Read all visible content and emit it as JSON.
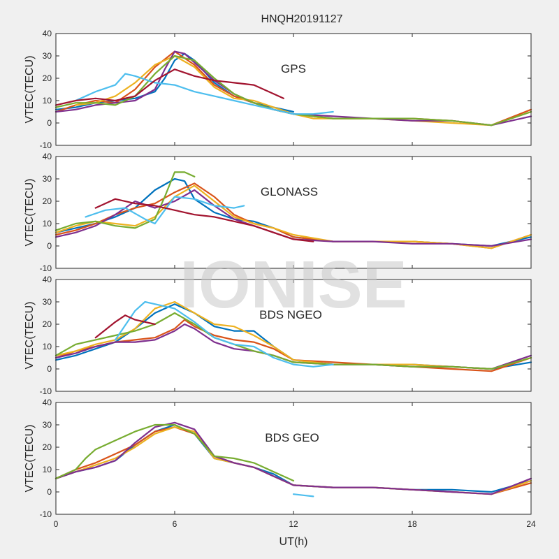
{
  "title": "HNQH20191127",
  "watermark": "IONISE",
  "colors": [
    "#0072BD",
    "#D95319",
    "#EDB120",
    "#7E2F8E",
    "#77AC30",
    "#4DBEEE",
    "#A2142F"
  ],
  "chart_data": [
    {
      "type": "line",
      "label": "GPS",
      "ylabel": "VTEC(TECU)",
      "xlim": [
        0,
        24
      ],
      "ylim": [
        -10,
        40
      ],
      "xticks": [
        0,
        6,
        12,
        18,
        24
      ],
      "yticks": [
        -10,
        0,
        10,
        20,
        30,
        40
      ],
      "series": [
        {
          "x": [
            0,
            1,
            2,
            3,
            4,
            5,
            5.5,
            6,
            6.5,
            7,
            8,
            9,
            10,
            11,
            12
          ],
          "y": [
            6,
            7,
            9,
            10,
            11,
            14,
            20,
            28,
            31,
            28,
            18,
            12,
            9,
            7,
            5
          ]
        },
        {
          "x": [
            0,
            1,
            2,
            3,
            4,
            5,
            6,
            7,
            8,
            9,
            10,
            11,
            12,
            14,
            16,
            18,
            20,
            22,
            24
          ],
          "y": [
            5,
            8,
            10,
            9,
            15,
            25,
            32,
            26,
            17,
            12,
            9,
            6,
            4,
            2,
            2,
            2,
            1,
            -1,
            6
          ]
        },
        {
          "x": [
            1,
            2,
            3,
            4,
            5,
            6,
            7,
            8,
            9,
            10,
            11,
            12,
            13,
            14,
            16,
            18,
            20,
            22,
            24
          ],
          "y": [
            8,
            9,
            12,
            18,
            26,
            30,
            25,
            16,
            11,
            10,
            7,
            4,
            2,
            2,
            2,
            1,
            0,
            -1,
            5
          ]
        },
        {
          "x": [
            0,
            1,
            2,
            3,
            4,
            5,
            5.5,
            6,
            6.5,
            7,
            8,
            9,
            10,
            11,
            12,
            14,
            16,
            18,
            20,
            22,
            24
          ],
          "y": [
            5,
            6,
            8,
            9,
            10,
            15,
            24,
            32,
            31,
            27,
            19,
            13,
            9,
            6,
            4,
            3,
            2,
            1,
            1,
            -1,
            3
          ]
        },
        {
          "x": [
            0,
            1,
            2,
            3,
            4,
            5,
            6,
            7,
            8,
            9,
            10,
            11,
            12,
            14,
            16,
            18,
            20,
            22,
            24
          ],
          "y": [
            7,
            9,
            9,
            8,
            12,
            22,
            30,
            28,
            20,
            13,
            9,
            6,
            4,
            2,
            2,
            2,
            1,
            -1,
            5
          ]
        },
        {
          "x": [
            1,
            2,
            3,
            3.5,
            4,
            5,
            6,
            7,
            8,
            9,
            10,
            11,
            12,
            13,
            14
          ],
          "y": [
            10,
            14,
            17,
            22,
            21,
            18,
            17,
            14,
            12,
            10,
            8,
            6,
            4,
            4,
            5
          ]
        },
        {
          "x": [
            0,
            1,
            2,
            3,
            4,
            5,
            6,
            7,
            8,
            9,
            10,
            10.5,
            11,
            11.5
          ],
          "y": [
            8,
            10,
            11,
            10,
            12,
            19,
            24,
            21,
            19,
            18,
            17,
            15,
            13,
            11
          ]
        }
      ]
    },
    {
      "type": "line",
      "label": "GLONASS",
      "ylabel": "VTEC(TECU)",
      "xlim": [
        0,
        24
      ],
      "ylim": [
        -10,
        40
      ],
      "xticks": [
        0,
        6,
        12,
        18,
        24
      ],
      "yticks": [
        -10,
        0,
        10,
        20,
        30,
        40
      ],
      "series": [
        {
          "x": [
            0,
            1,
            2,
            3,
            4,
            5,
            6,
            6.5,
            7,
            8,
            9,
            10,
            11,
            12,
            14,
            16,
            18,
            20,
            22,
            24
          ],
          "y": [
            6,
            8,
            10,
            13,
            17,
            25,
            30,
            29,
            21,
            15,
            12,
            11,
            8,
            4,
            2,
            2,
            2,
            1,
            0,
            4
          ]
        },
        {
          "x": [
            0,
            1,
            2,
            3,
            4,
            5,
            6,
            7,
            8,
            9,
            10,
            11,
            12,
            14,
            16,
            18,
            20,
            22,
            24
          ],
          "y": [
            5,
            7,
            10,
            14,
            17,
            19,
            24,
            28,
            22,
            14,
            10,
            8,
            4,
            2,
            2,
            2,
            1,
            -1,
            5
          ]
        },
        {
          "x": [
            0,
            1,
            2,
            3,
            4,
            5,
            6,
            7,
            8,
            9,
            10,
            11,
            12,
            14,
            16,
            18,
            20,
            22,
            24
          ],
          "y": [
            6,
            9,
            11,
            10,
            9,
            13,
            22,
            27,
            20,
            13,
            10,
            8,
            5,
            2,
            2,
            2,
            1,
            -1,
            5
          ]
        },
        {
          "x": [
            0,
            1,
            2,
            3,
            4,
            5,
            6,
            7,
            8,
            9,
            10,
            11,
            12,
            14,
            16,
            18,
            20,
            22,
            24
          ],
          "y": [
            4,
            6,
            9,
            14,
            20,
            17,
            20,
            25,
            18,
            12,
            9,
            6,
            3,
            2,
            2,
            1,
            1,
            0,
            3
          ]
        },
        {
          "x": [
            0,
            1,
            2,
            3,
            4,
            5,
            5.5,
            6,
            6.5,
            7
          ],
          "y": [
            7,
            10,
            11,
            9,
            8,
            12,
            22,
            33,
            33,
            31
          ]
        },
        {
          "x": [
            1.5,
            2.5,
            3.5,
            4.5,
            5,
            5.5,
            6,
            7,
            8,
            9,
            9.5
          ],
          "y": [
            13,
            16,
            17,
            12,
            10,
            16,
            22,
            21,
            18,
            17,
            18
          ]
        },
        {
          "x": [
            2,
            3,
            4,
            5,
            6,
            7,
            8,
            9,
            10,
            11,
            12,
            13
          ],
          "y": [
            17,
            21,
            19,
            18,
            16,
            14,
            13,
            11,
            9,
            6,
            3,
            2
          ]
        }
      ]
    },
    {
      "type": "line",
      "label": "BDS NGEO",
      "ylabel": "VTEC(TECU)",
      "xlim": [
        0,
        24
      ],
      "ylim": [
        -10,
        40
      ],
      "xticks": [
        0,
        6,
        12,
        18,
        24
      ],
      "yticks": [
        -10,
        0,
        10,
        20,
        30,
        40
      ],
      "series": [
        {
          "x": [
            0,
            1,
            2,
            3,
            4,
            5,
            6,
            7,
            8,
            9,
            10,
            11,
            12,
            14,
            16,
            18,
            20,
            22,
            24
          ],
          "y": [
            4,
            6,
            9,
            12,
            18,
            25,
            29,
            25,
            19,
            17,
            17,
            10,
            4,
            2,
            2,
            2,
            1,
            0,
            3
          ]
        },
        {
          "x": [
            0,
            1,
            2,
            3,
            4,
            5,
            6,
            6.5,
            7,
            8,
            9,
            10,
            11,
            12,
            14,
            16,
            18,
            20,
            22,
            24
          ],
          "y": [
            5,
            8,
            10,
            12,
            13,
            14,
            18,
            22,
            19,
            15,
            13,
            12,
            9,
            4,
            3,
            2,
            1,
            0,
            -1,
            5
          ]
        },
        {
          "x": [
            0,
            1,
            2,
            3,
            4,
            5,
            6,
            7,
            8,
            9,
            10,
            11,
            12,
            14,
            16,
            18,
            20,
            22,
            24
          ],
          "y": [
            6,
            8,
            11,
            13,
            18,
            27,
            30,
            25,
            20,
            19,
            15,
            10,
            4,
            2,
            2,
            2,
            1,
            0,
            5
          ]
        },
        {
          "x": [
            0,
            1,
            2,
            3,
            4,
            5,
            6,
            6.5,
            7,
            8,
            9,
            10,
            11,
            12,
            14,
            16,
            18,
            20,
            22,
            24
          ],
          "y": [
            5,
            7,
            10,
            12,
            12,
            13,
            17,
            20,
            18,
            12,
            9,
            8,
            6,
            3,
            2,
            2,
            1,
            1,
            0,
            6
          ]
        },
        {
          "x": [
            0,
            1,
            2,
            3,
            4,
            5,
            6,
            7,
            8,
            9,
            10,
            11,
            12,
            14,
            16,
            18,
            20,
            22,
            24
          ],
          "y": [
            6,
            11,
            13,
            15,
            17,
            20,
            25,
            20,
            14,
            11,
            8,
            6,
            3,
            2,
            2,
            1,
            1,
            0,
            5
          ]
        },
        {
          "x": [
            3,
            4,
            4.5,
            5,
            6,
            7,
            8,
            9,
            10,
            11,
            12,
            13,
            14
          ],
          "y": [
            13,
            26,
            30,
            29,
            27,
            21,
            14,
            11,
            10,
            5,
            2,
            1,
            2
          ]
        },
        {
          "x": [
            2,
            3,
            3.5,
            4,
            5
          ],
          "y": [
            14,
            21,
            24,
            22,
            20
          ]
        }
      ]
    },
    {
      "type": "line",
      "label": "BDS GEO",
      "ylabel": "VTEC(TECU)",
      "xlim": [
        0,
        24
      ],
      "ylim": [
        -10,
        40
      ],
      "xticks": [
        0,
        6,
        12,
        18,
        24
      ],
      "yticks": [
        -10,
        0,
        10,
        20,
        30,
        40
      ],
      "series": [
        {
          "x": [
            0,
            1,
            2,
            3,
            4,
            5,
            6,
            7,
            8,
            9,
            10,
            11,
            12,
            14,
            16,
            18,
            20,
            22,
            24
          ],
          "y": [
            6,
            9,
            11,
            14,
            21,
            27,
            30,
            26,
            15,
            13,
            11,
            8,
            3,
            2,
            2,
            1,
            1,
            0,
            5
          ]
        },
        {
          "x": [
            0,
            1,
            2,
            3,
            4,
            5,
            6,
            7,
            8,
            9,
            10,
            11,
            12,
            14,
            16,
            18,
            20,
            22,
            24
          ],
          "y": [
            6,
            10,
            13,
            17,
            21,
            27,
            29,
            26,
            16,
            13,
            11,
            7,
            3,
            2,
            2,
            1,
            0,
            -1,
            4
          ]
        },
        {
          "x": [
            0,
            1,
            2,
            3,
            4,
            5,
            6,
            7,
            8,
            9,
            10,
            11,
            12,
            14,
            16,
            18,
            20,
            22,
            24
          ],
          "y": [
            6,
            9,
            12,
            15,
            20,
            26,
            29,
            27,
            15,
            13,
            11,
            7,
            3,
            2,
            2,
            1,
            0,
            -1,
            5
          ]
        },
        {
          "x": [
            0,
            1,
            2,
            3,
            4,
            5,
            6,
            7,
            8,
            9,
            10,
            11,
            12,
            14,
            16,
            18,
            20,
            22,
            24
          ],
          "y": [
            6,
            9,
            11,
            14,
            22,
            29,
            31,
            28,
            16,
            13,
            11,
            7,
            3,
            2,
            2,
            1,
            0,
            -1,
            6
          ]
        },
        {
          "x": [
            0,
            1,
            1.5,
            2,
            3,
            4,
            5,
            6,
            7,
            8,
            9,
            10,
            11,
            12
          ],
          "y": [
            6,
            10,
            15,
            19,
            23,
            27,
            30,
            30,
            26,
            16,
            15,
            13,
            9,
            5
          ]
        },
        {
          "x": [
            12,
            12.5,
            13
          ],
          "y": [
            -1,
            -1.5,
            -2
          ]
        }
      ]
    }
  ],
  "xlabel": "UT(h)"
}
